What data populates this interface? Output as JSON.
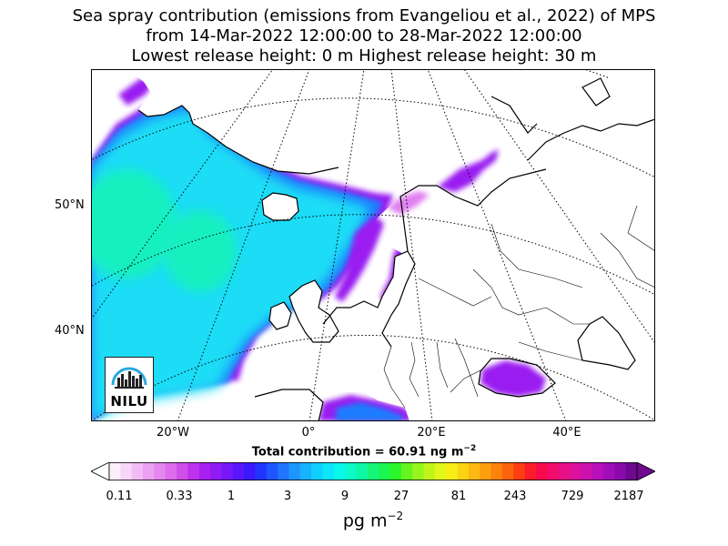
{
  "title": {
    "line1": "Sea spray contribution (emissions from Evangeliou et al., 2022) of MPS",
    "line2": "from 14-Mar-2022 12:00:00 to 28-Mar-2022 12:00:00",
    "line3": "Lowest release height: 0 m      Highest release height: 30 m"
  },
  "axes": {
    "lat_labels": [
      "50°N",
      "40°N"
    ],
    "lon_labels": [
      "20°W",
      "0°",
      "20°E",
      "40°E"
    ]
  },
  "total": {
    "prefix": "Total contribution = 60.91 ng m",
    "exponent": "−2"
  },
  "colorbar": {
    "ticks": [
      "0.11",
      "0.33",
      "1",
      "3",
      "9",
      "27",
      "81",
      "243",
      "729",
      "2187"
    ],
    "unit_base": "pg m",
    "unit_exponent": "−2",
    "colors": [
      "#fdf0fd",
      "#f8d6f9",
      "#f3bbf5",
      "#eca0f1",
      "#e587ee",
      "#dd6deb",
      "#cf4fe9",
      "#bd33ec",
      "#a91ff0",
      "#911bf5",
      "#7818f8",
      "#5a16fb",
      "#3a1afd",
      "#2233fe",
      "#1f55fe",
      "#2075fe",
      "#1f95fe",
      "#18b2fe",
      "#10cffd",
      "#0be6fa",
      "#0bf6ea",
      "#0cf9c8",
      "#0ff7a2",
      "#14f57a",
      "#1af552",
      "#2df52b",
      "#64f41f",
      "#95f51c",
      "#c1f51a",
      "#e3f519",
      "#f8ed17",
      "#fcd314",
      "#fdb911",
      "#fd9e0e",
      "#fd820c",
      "#fd630d",
      "#fd3e12",
      "#fc1c2a",
      "#f80a4c",
      "#f10b6a",
      "#e80e86",
      "#dc119d",
      "#cc11ae",
      "#b80fb8",
      "#a10db8",
      "#880aab",
      "#6d088f"
    ]
  },
  "logo": {
    "text": "NILU"
  },
  "map_colors": {
    "ocean_main": "#1ddcf6",
    "ocean_dense": "#14f0c0",
    "ocean_edge": "#1f7cfe",
    "ocean_fringe": "#9a1df0",
    "ocean_faint": "#e080f0",
    "land": "#ffffff",
    "coast": "#000000"
  }
}
